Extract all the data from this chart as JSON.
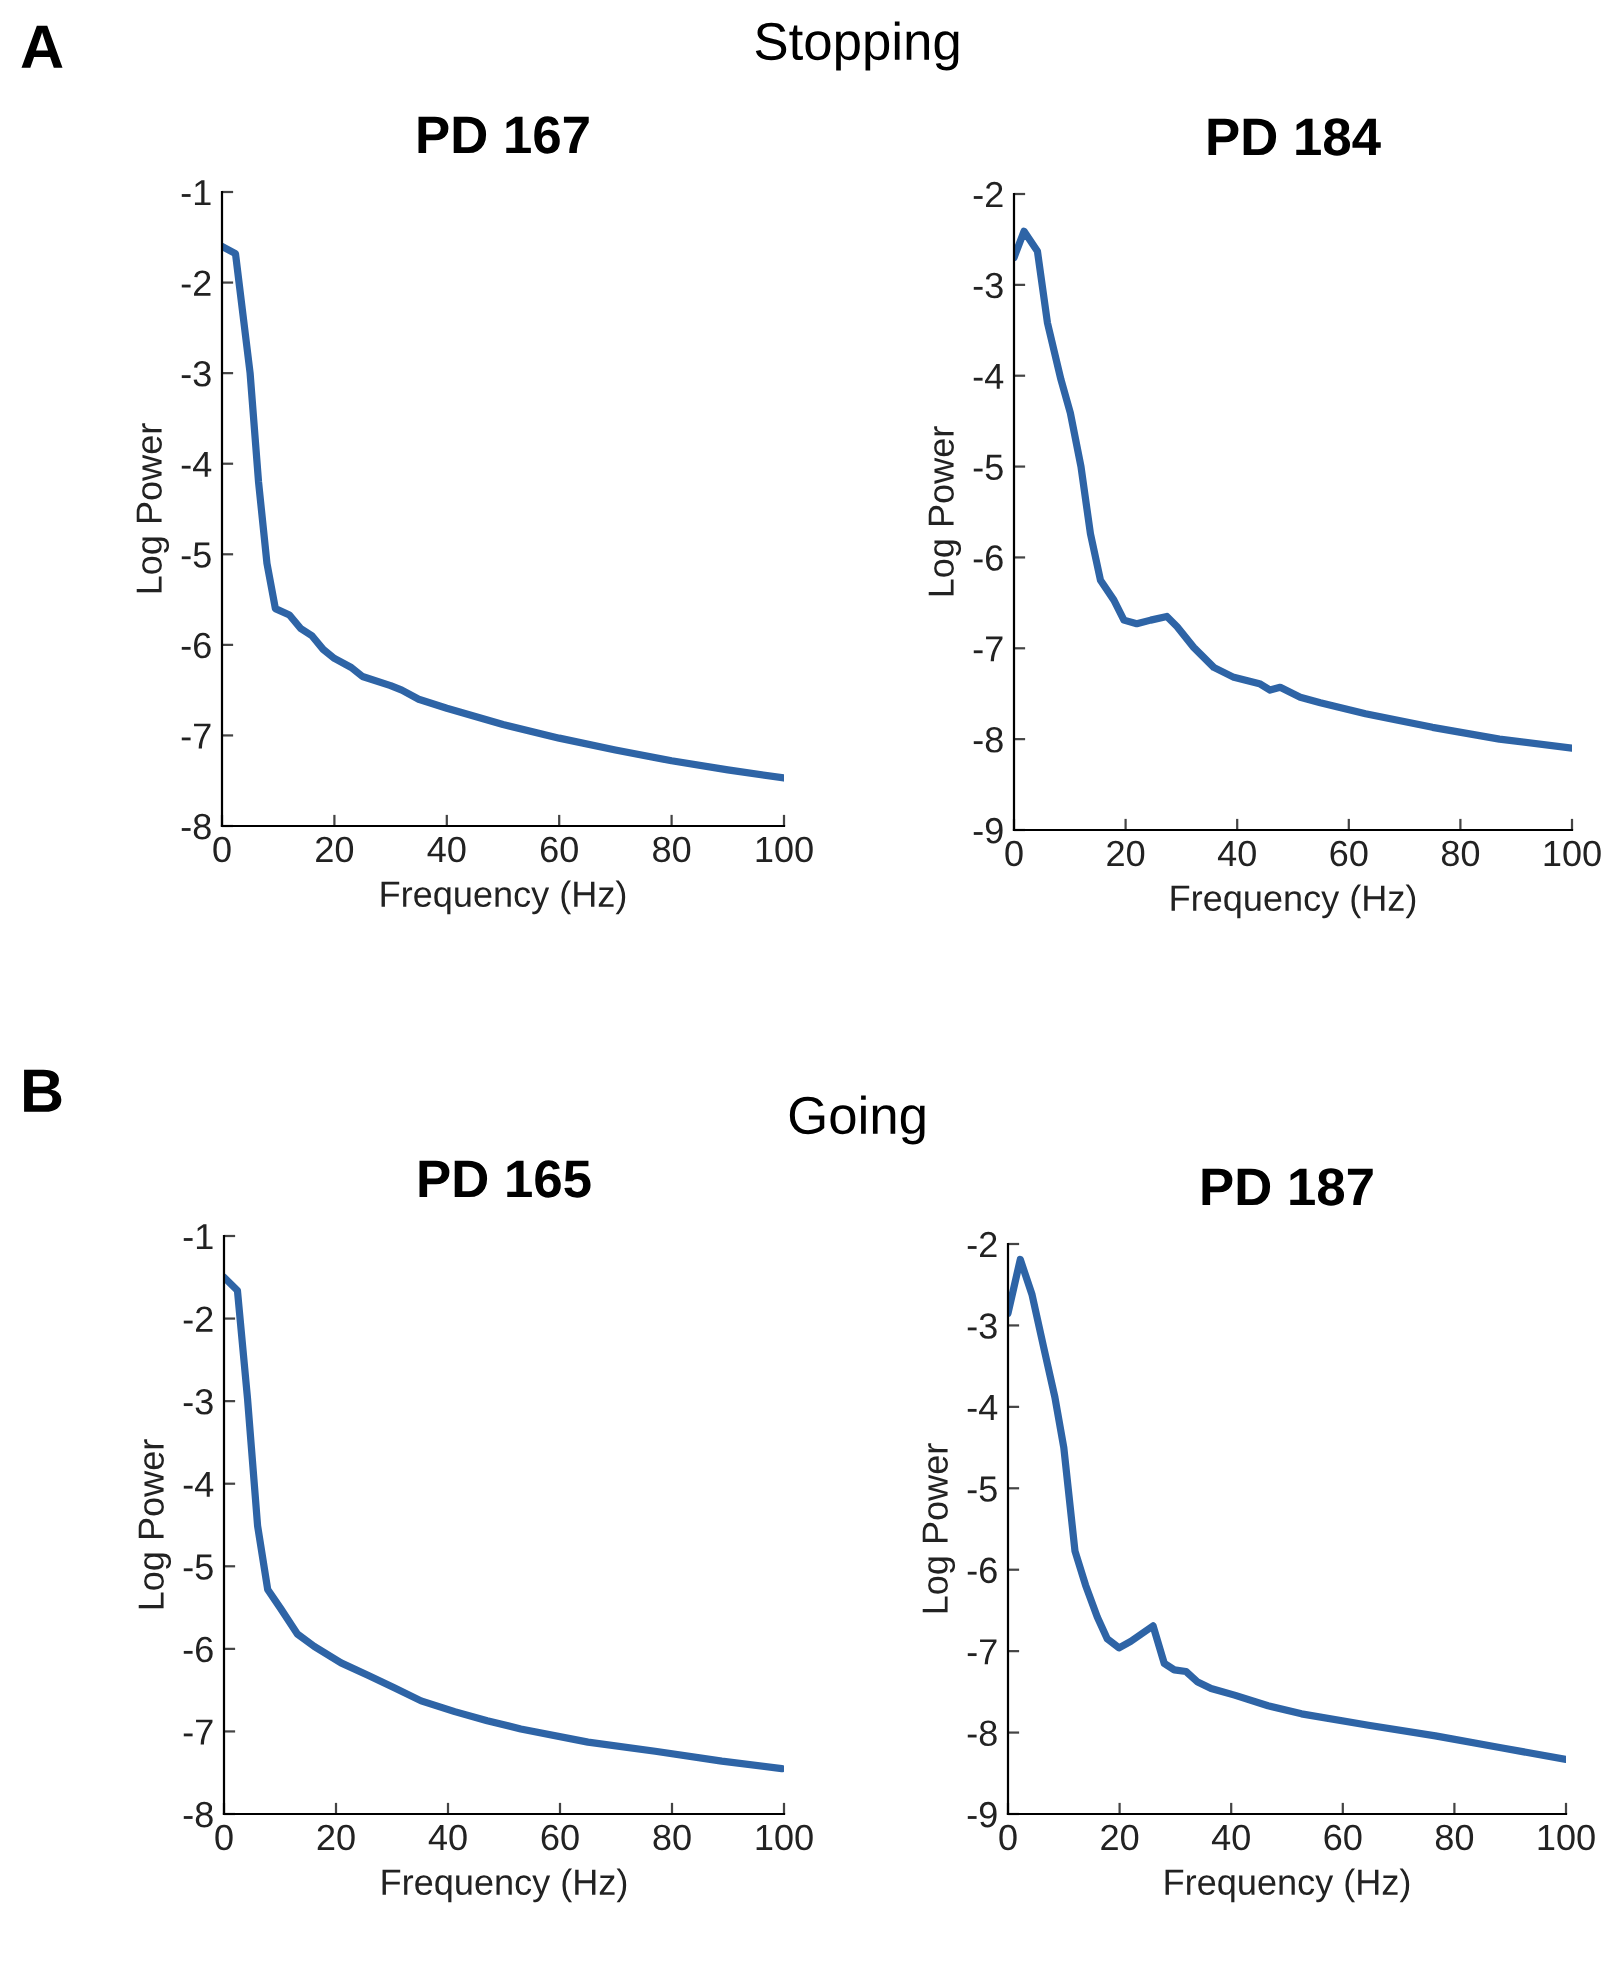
{
  "chart_data": [
    {
      "type": "line",
      "title": "PD 167",
      "xlabel": "Frequency (Hz)",
      "ylabel": "Log Power",
      "annotations": [
        "A",
        "Stopping"
      ],
      "xlim": [
        0,
        100
      ],
      "ylim": [
        -8,
        -1
      ],
      "xticks": [
        0,
        20,
        40,
        60,
        80,
        100
      ],
      "yticks": [
        -8,
        -7,
        -6,
        -5,
        -4,
        -3,
        -2,
        -1
      ],
      "grid": false,
      "legend": false,
      "series": [
        {
          "color": "#2e64a6",
          "x": [
            0,
            2.4,
            5,
            6.5,
            8,
            9.5,
            12,
            14,
            16,
            18,
            20,
            23,
            25,
            30,
            32,
            35,
            40,
            50,
            60,
            70,
            80,
            90,
            100
          ],
          "values": [
            -1.6,
            -1.68,
            -3.0,
            -4.2,
            -5.1,
            -5.6,
            -5.67,
            -5.82,
            -5.9,
            -6.05,
            -6.15,
            -6.25,
            -6.35,
            -6.45,
            -6.5,
            -6.6,
            -6.7,
            -6.88,
            -7.03,
            -7.16,
            -7.28,
            -7.38,
            -7.47
          ]
        }
      ]
    },
    {
      "type": "line",
      "title": "PD 184",
      "xlabel": "Frequency (Hz)",
      "ylabel": "Log Power",
      "xlim": [
        0,
        100
      ],
      "ylim": [
        -9,
        -2
      ],
      "xticks": [
        0,
        20,
        40,
        60,
        80,
        100
      ],
      "yticks": [
        -9,
        -8,
        -7,
        -6,
        -5,
        -4,
        -3,
        -2
      ],
      "grid": false,
      "legend": false,
      "series": [
        {
          "color": "#2e64a6",
          "x": [
            0,
            1.8,
            4.2,
            6,
            8.4,
            10.1,
            12,
            13.7,
            15.5,
            17.9,
            19.7,
            22,
            24.5,
            27.4,
            29.2,
            32.2,
            35.8,
            39.4,
            44,
            45.9,
            47.7,
            51.3,
            54.9,
            63,
            75,
            87,
            100
          ],
          "values": [
            -2.7,
            -2.41,
            -2.63,
            -3.42,
            -4.04,
            -4.41,
            -5.0,
            -5.74,
            -6.25,
            -6.47,
            -6.69,
            -6.73,
            -6.69,
            -6.65,
            -6.76,
            -6.99,
            -7.21,
            -7.32,
            -7.39,
            -7.46,
            -7.43,
            -7.54,
            -7.6,
            -7.72,
            -7.87,
            -8.0,
            -8.1
          ]
        }
      ]
    },
    {
      "type": "line",
      "title": "PD 165",
      "xlabel": "Frequency (Hz)",
      "ylabel": "Log Power",
      "annotations": [
        "B",
        "Going"
      ],
      "xlim": [
        0,
        100
      ],
      "ylim": [
        -8,
        -1
      ],
      "xticks": [
        0,
        20,
        40,
        60,
        80,
        100
      ],
      "yticks": [
        -8,
        -7,
        -6,
        -5,
        -4,
        -3,
        -2,
        -1
      ],
      "grid": false,
      "legend": false,
      "series": [
        {
          "color": "#2e64a6",
          "x": [
            0,
            2.4,
            4.2,
            6,
            7.8,
            10.1,
            13.1,
            16.1,
            20.9,
            25.7,
            30.4,
            35.2,
            41.2,
            47,
            53,
            65,
            77,
            88.9,
            99.6
          ],
          "values": [
            -1.5,
            -1.66,
            -2.97,
            -4.51,
            -5.28,
            -5.51,
            -5.82,
            -5.97,
            -6.17,
            -6.32,
            -6.47,
            -6.63,
            -6.76,
            -6.87,
            -6.97,
            -7.13,
            -7.24,
            -7.36,
            -7.45
          ]
        }
      ]
    },
    {
      "type": "line",
      "title": "PD 187",
      "xlabel": "Frequency (Hz)",
      "ylabel": "Log Power",
      "xlim": [
        0,
        100
      ],
      "ylim": [
        -9,
        -2
      ],
      "xticks": [
        0,
        20,
        40,
        60,
        80,
        100
      ],
      "yticks": [
        -9,
        -8,
        -7,
        -6,
        -5,
        -4,
        -3,
        -2
      ],
      "grid": false,
      "legend": false,
      "series": [
        {
          "color": "#2e64a6",
          "x": [
            0,
            2.2,
            4.3,
            6.4,
            8.4,
            10,
            12,
            13.9,
            16,
            17.8,
            19.9,
            22,
            26,
            28,
            29.8,
            31.9,
            34,
            36.4,
            40.6,
            46.6,
            52.6,
            64.6,
            76.6,
            88.6,
            100
          ],
          "values": [
            -2.85,
            -2.19,
            -2.62,
            -3.27,
            -3.88,
            -4.5,
            -5.77,
            -6.19,
            -6.58,
            -6.85,
            -6.96,
            -6.88,
            -6.69,
            -7.15,
            -7.23,
            -7.25,
            -7.38,
            -7.46,
            -7.54,
            -7.67,
            -7.77,
            -7.91,
            -8.04,
            -8.19,
            -8.33
          ]
        }
      ]
    }
  ]
}
